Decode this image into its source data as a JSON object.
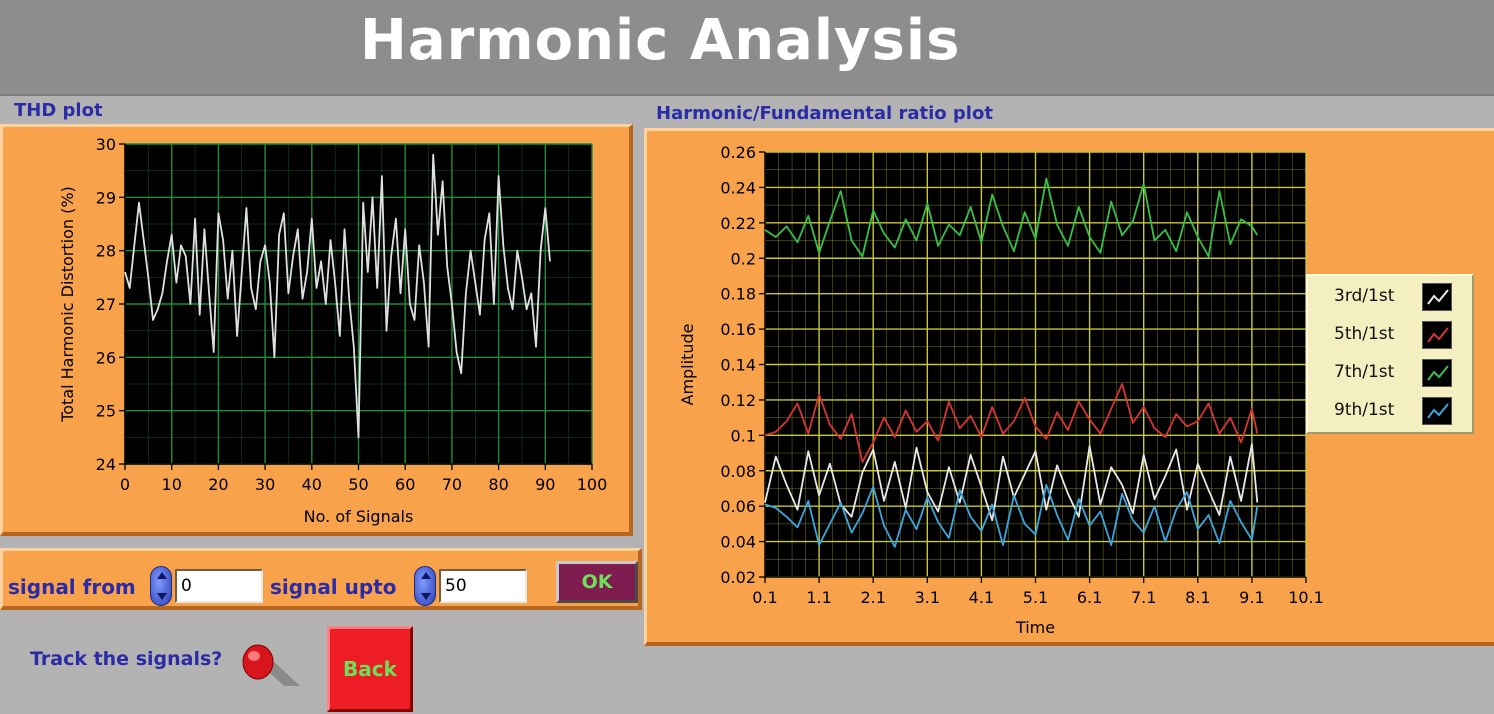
{
  "app": {
    "title": "Harmonic Analysis"
  },
  "thd_panel": {
    "label": "THD plot"
  },
  "ratio_panel": {
    "label": "Harmonic/Fundamental ratio plot"
  },
  "controls": {
    "signal_from_label": "signal from",
    "signal_from_value": "0",
    "signal_upto_label": "signal upto",
    "signal_upto_value": "50",
    "ok_label": "OK",
    "track_label": "Track the signals?",
    "back_label": "Back"
  },
  "colors": {
    "panel_orange": "#f8a24c",
    "plot_background": "#000000",
    "thd_grid": "#1e8c3c",
    "ratio_grid": "#c8c832",
    "series_3rd": "#e8e8e8",
    "series_5th": "#d83434",
    "series_7th": "#36c04a",
    "series_9th": "#3aa6e0"
  },
  "icons": {
    "toggle": "red-toggle-switch-icon"
  },
  "chart_data": [
    {
      "type": "line",
      "title": "",
      "xlabel": "No. of Signals",
      "ylabel": "Total Harmonic Distortion (%)",
      "xlim": [
        0,
        100
      ],
      "ylim": [
        24,
        30
      ],
      "xticks": [
        "0",
        "10",
        "20",
        "30",
        "40",
        "50",
        "60",
        "70",
        "80",
        "90",
        "100"
      ],
      "yticks": [
        "24",
        "25",
        "26",
        "27",
        "28",
        "29",
        "30"
      ],
      "grid": true,
      "series": [
        {
          "x": [
            0,
            1,
            2,
            3,
            4,
            5,
            6,
            7,
            8,
            9,
            10,
            11,
            12,
            13,
            14,
            15,
            16,
            17,
            18,
            19,
            20,
            21,
            22,
            23,
            24,
            25,
            26,
            27,
            28,
            29,
            30,
            31,
            32,
            33,
            34,
            35,
            36,
            37,
            38,
            39,
            40,
            41,
            42,
            43,
            44,
            45,
            46,
            47,
            48,
            49,
            50,
            51,
            52,
            53,
            54,
            55,
            56,
            57,
            58,
            59,
            60,
            61,
            62,
            63,
            64,
            65,
            66,
            67,
            68,
            69,
            70,
            71,
            72,
            73,
            74,
            75,
            76,
            77,
            78,
            79,
            80,
            81,
            82,
            83,
            84,
            85,
            86,
            87,
            88,
            89,
            90,
            91
          ],
          "values": [
            27.6,
            27.3,
            28.1,
            28.9,
            28.2,
            27.5,
            26.7,
            26.9,
            27.2,
            27.8,
            28.3,
            27.4,
            28.1,
            27.9,
            27.0,
            28.6,
            26.8,
            28.4,
            27.2,
            26.1,
            28.7,
            28.2,
            27.1,
            28.0,
            26.4,
            27.6,
            28.8,
            27.3,
            26.9,
            27.8,
            28.1,
            27.4,
            26.0,
            28.3,
            28.7,
            27.2,
            27.9,
            28.4,
            27.1,
            27.6,
            28.6,
            27.3,
            27.8,
            27.0,
            28.2,
            27.4,
            26.4,
            28.4,
            27.1,
            26.2,
            24.5,
            28.9,
            27.6,
            29.0,
            27.3,
            29.4,
            26.5,
            27.9,
            28.6,
            27.2,
            28.4,
            27.0,
            26.7,
            28.1,
            27.4,
            26.2,
            29.8,
            28.3,
            29.3,
            27.7,
            27.0,
            26.1,
            25.7,
            27.2,
            28.0,
            27.4,
            26.8,
            28.2,
            28.7,
            27.0,
            29.4,
            28.1,
            27.3,
            26.9,
            28.0,
            27.5,
            26.9,
            27.2,
            26.2,
            28.0,
            28.8,
            27.8
          ],
          "color": "#e0e0e0"
        }
      ]
    },
    {
      "type": "line",
      "title": "",
      "xlabel": "Time",
      "ylabel": "Amplitude",
      "xlim": [
        0.1,
        10.1
      ],
      "ylim": [
        0.02,
        0.26
      ],
      "xticks": [
        "0.1",
        "1.1",
        "2.1",
        "3.1",
        "4.1",
        "5.1",
        "6.1",
        "7.1",
        "8.1",
        "9.1",
        "10.1"
      ],
      "yticks": [
        "0.02",
        "0.04",
        "0.06",
        "0.08",
        "0.1",
        "0.12",
        "0.14",
        "0.16",
        "0.18",
        "0.2",
        "0.22",
        "0.24",
        "0.26"
      ],
      "grid": true,
      "legend_position": "right",
      "x": [
        0.1,
        0.3,
        0.5,
        0.7,
        0.9,
        1.1,
        1.3,
        1.5,
        1.7,
        1.9,
        2.1,
        2.3,
        2.5,
        2.7,
        2.9,
        3.1,
        3.3,
        3.5,
        3.7,
        3.9,
        4.1,
        4.3,
        4.5,
        4.7,
        4.9,
        5.1,
        5.3,
        5.5,
        5.7,
        5.9,
        6.1,
        6.3,
        6.5,
        6.7,
        6.9,
        7.1,
        7.3,
        7.5,
        7.7,
        7.9,
        8.1,
        8.3,
        8.5,
        8.7,
        8.9,
        9.1,
        9.2
      ],
      "series": [
        {
          "name": "3rd/1st",
          "color": "#e8e8e8",
          "values": [
            0.062,
            0.088,
            0.072,
            0.058,
            0.091,
            0.066,
            0.084,
            0.061,
            0.054,
            0.079,
            0.092,
            0.063,
            0.085,
            0.059,
            0.093,
            0.068,
            0.057,
            0.082,
            0.062,
            0.089,
            0.071,
            0.052,
            0.088,
            0.065,
            0.078,
            0.091,
            0.058,
            0.083,
            0.067,
            0.054,
            0.094,
            0.061,
            0.082,
            0.072,
            0.056,
            0.089,
            0.064,
            0.077,
            0.092,
            0.058,
            0.084,
            0.069,
            0.055,
            0.088,
            0.063,
            0.095,
            0.062
          ]
        },
        {
          "name": "5th/1st",
          "color": "#d83434",
          "values": [
            0.1,
            0.102,
            0.108,
            0.118,
            0.101,
            0.123,
            0.106,
            0.098,
            0.112,
            0.085,
            0.096,
            0.11,
            0.099,
            0.114,
            0.102,
            0.108,
            0.097,
            0.119,
            0.104,
            0.111,
            0.099,
            0.116,
            0.101,
            0.108,
            0.121,
            0.105,
            0.098,
            0.113,
            0.103,
            0.119,
            0.109,
            0.101,
            0.115,
            0.129,
            0.107,
            0.116,
            0.104,
            0.099,
            0.112,
            0.105,
            0.108,
            0.118,
            0.101,
            0.11,
            0.096,
            0.115,
            0.101
          ]
        },
        {
          "name": "7th/1st",
          "color": "#36c04a",
          "values": [
            0.216,
            0.212,
            0.218,
            0.209,
            0.224,
            0.203,
            0.221,
            0.238,
            0.21,
            0.201,
            0.227,
            0.214,
            0.206,
            0.222,
            0.21,
            0.231,
            0.207,
            0.219,
            0.213,
            0.229,
            0.209,
            0.236,
            0.218,
            0.204,
            0.226,
            0.211,
            0.245,
            0.219,
            0.207,
            0.229,
            0.212,
            0.203,
            0.232,
            0.213,
            0.221,
            0.242,
            0.21,
            0.216,
            0.204,
            0.226,
            0.212,
            0.201,
            0.238,
            0.208,
            0.222,
            0.218,
            0.213
          ]
        },
        {
          "name": "9th/1st",
          "color": "#3aa6e0",
          "values": [
            0.061,
            0.059,
            0.054,
            0.048,
            0.063,
            0.038,
            0.05,
            0.062,
            0.045,
            0.056,
            0.071,
            0.049,
            0.037,
            0.058,
            0.047,
            0.065,
            0.051,
            0.042,
            0.069,
            0.054,
            0.046,
            0.061,
            0.038,
            0.066,
            0.05,
            0.044,
            0.072,
            0.055,
            0.041,
            0.064,
            0.049,
            0.057,
            0.038,
            0.067,
            0.052,
            0.045,
            0.06,
            0.04,
            0.058,
            0.068,
            0.047,
            0.055,
            0.039,
            0.063,
            0.051,
            0.041,
            0.06
          ]
        }
      ]
    }
  ]
}
